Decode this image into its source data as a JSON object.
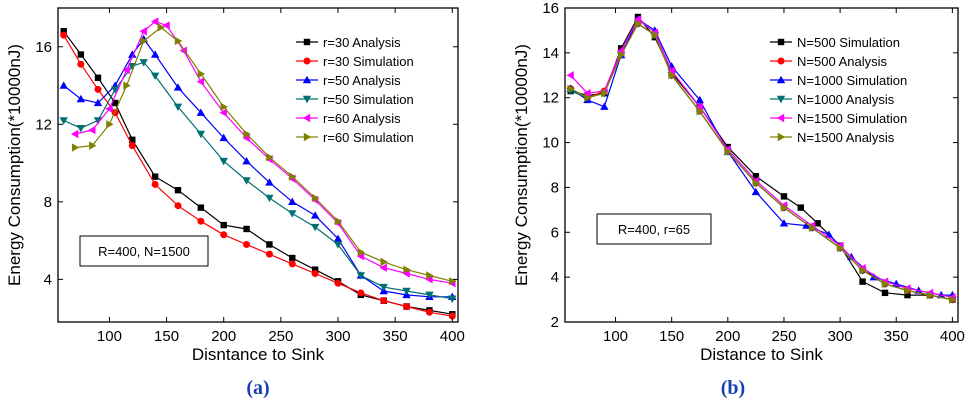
{
  "chart_data": [
    {
      "type": "line",
      "caption": "(a)",
      "xlabel": "Disntance to Sink",
      "ylabel": "Energy Consumption(*10000nJ)",
      "xlim": [
        55,
        405
      ],
      "ylim": [
        1.8,
        18
      ],
      "xticks": [
        100,
        150,
        200,
        250,
        300,
        350,
        400
      ],
      "yticks": [
        4,
        8,
        12,
        16
      ],
      "annotation": "R=400, N=1500",
      "legend_position": "top-right",
      "series": [
        {
          "name": "r=30 Analysis",
          "color": "#000000",
          "marker": "square",
          "x": [
            60,
            75,
            90,
            105,
            120,
            140,
            160,
            180,
            200,
            220,
            240,
            260,
            280,
            300,
            320,
            340,
            360,
            380,
            400
          ],
          "y": [
            16.8,
            15.6,
            14.4,
            13.1,
            11.2,
            9.3,
            8.6,
            7.7,
            6.8,
            6.6,
            5.8,
            5.1,
            4.5,
            3.9,
            3.2,
            2.9,
            2.6,
            2.4,
            2.2
          ]
        },
        {
          "name": "r=30 Simulation",
          "color": "#ff0000",
          "marker": "circle",
          "x": [
            60,
            75,
            90,
            105,
            120,
            140,
            160,
            180,
            200,
            220,
            240,
            260,
            280,
            300,
            320,
            340,
            360,
            380,
            400
          ],
          "y": [
            16.6,
            15.1,
            13.8,
            12.6,
            10.9,
            8.9,
            7.8,
            7.0,
            6.3,
            5.8,
            5.3,
            4.8,
            4.3,
            3.8,
            3.3,
            2.9,
            2.6,
            2.3,
            2.1
          ]
        },
        {
          "name": "r=50 Analysis",
          "color": "#0000ff",
          "marker": "triangle-up",
          "x": [
            60,
            75,
            90,
            105,
            120,
            130,
            140,
            160,
            180,
            200,
            220,
            240,
            260,
            280,
            300,
            320,
            340,
            360,
            380,
            400
          ],
          "y": [
            14.0,
            13.3,
            13.1,
            14.0,
            15.6,
            16.4,
            15.6,
            13.9,
            12.6,
            11.3,
            10.1,
            9.0,
            8.0,
            7.3,
            6.1,
            4.2,
            3.4,
            3.2,
            3.1,
            3.1
          ]
        },
        {
          "name": "r=50 Simulation",
          "color": "#007070",
          "marker": "triangle-down",
          "x": [
            60,
            75,
            90,
            105,
            120,
            130,
            140,
            160,
            180,
            200,
            220,
            240,
            260,
            280,
            300,
            320,
            340,
            360,
            380,
            400
          ],
          "y": [
            12.2,
            11.8,
            12.2,
            13.8,
            15.0,
            15.2,
            14.5,
            12.9,
            11.5,
            10.1,
            9.1,
            8.2,
            7.4,
            6.7,
            5.8,
            4.2,
            3.6,
            3.4,
            3.2,
            3.0
          ]
        },
        {
          "name": "r=60 Analysis",
          "color": "#ff00ff",
          "marker": "triangle-left",
          "x": [
            70,
            85,
            100,
            115,
            130,
            140,
            150,
            165,
            180,
            200,
            220,
            240,
            260,
            280,
            300,
            320,
            340,
            360,
            380,
            400
          ],
          "y": [
            11.5,
            11.7,
            12.8,
            14.8,
            16.8,
            17.3,
            17.1,
            15.8,
            14.2,
            12.6,
            11.3,
            10.2,
            9.2,
            8.1,
            6.9,
            5.2,
            4.6,
            4.3,
            4.0,
            3.8
          ]
        },
        {
          "name": "r=60 Simulation",
          "color": "#808000",
          "marker": "triangle-right",
          "x": [
            70,
            85,
            100,
            115,
            130,
            145,
            160,
            180,
            200,
            220,
            240,
            260,
            280,
            300,
            320,
            340,
            360,
            380,
            400
          ],
          "y": [
            10.8,
            10.9,
            12.0,
            14.0,
            16.3,
            17.0,
            16.3,
            14.6,
            12.9,
            11.5,
            10.3,
            9.3,
            8.2,
            7.0,
            5.4,
            4.9,
            4.5,
            4.2,
            3.9
          ]
        }
      ]
    },
    {
      "type": "line",
      "caption": "(b)",
      "xlabel": "Distance to Sink",
      "ylabel": "Energy Consumption(*10000nJ)",
      "xlim": [
        55,
        405
      ],
      "ylim": [
        2,
        16
      ],
      "xticks": [
        100,
        150,
        200,
        250,
        300,
        350,
        400
      ],
      "yticks": [
        2,
        4,
        6,
        8,
        10,
        12,
        14,
        16
      ],
      "annotation": "R=400, r=65",
      "legend_position": "top-right",
      "series": [
        {
          "name": "N=500 Simulation",
          "color": "#000000",
          "marker": "square",
          "x": [
            60,
            75,
            90,
            105,
            120,
            135,
            150,
            175,
            200,
            225,
            250,
            265,
            280,
            300,
            320,
            340,
            360,
            380,
            400
          ],
          "y": [
            12.3,
            12.1,
            12.2,
            14.2,
            15.6,
            14.7,
            13.1,
            11.6,
            9.8,
            8.5,
            7.6,
            7.1,
            6.4,
            5.4,
            3.8,
            3.3,
            3.2,
            3.2,
            3.0
          ]
        },
        {
          "name": "N=500 Analysis",
          "color": "#ff0000",
          "marker": "circle",
          "x": [
            60,
            75,
            90,
            105,
            120,
            135,
            150,
            175,
            200,
            225,
            250,
            275,
            300,
            320,
            340,
            360,
            380,
            400
          ],
          "y": [
            12.4,
            12.0,
            12.3,
            14.0,
            15.3,
            14.8,
            13.0,
            11.4,
            9.6,
            8.2,
            7.1,
            6.2,
            5.3,
            4.3,
            3.7,
            3.4,
            3.2,
            3.0
          ]
        },
        {
          "name": "N=1000 Simulation",
          "color": "#0000ff",
          "marker": "triangle-up",
          "x": [
            60,
            75,
            90,
            105,
            120,
            135,
            150,
            175,
            200,
            225,
            250,
            270,
            290,
            310,
            330,
            350,
            370,
            390,
            400
          ],
          "y": [
            12.4,
            11.9,
            11.6,
            13.9,
            15.5,
            15.0,
            13.4,
            11.9,
            9.6,
            7.8,
            6.4,
            6.3,
            5.9,
            4.9,
            4.0,
            3.7,
            3.4,
            3.2,
            3.2
          ]
        },
        {
          "name": "N=1000 Analysis",
          "color": "#007070",
          "marker": "triangle-down",
          "x": [
            60,
            75,
            90,
            105,
            120,
            135,
            150,
            175,
            200,
            225,
            250,
            275,
            300,
            320,
            340,
            360,
            380,
            400
          ],
          "y": [
            12.3,
            12.0,
            12.2,
            13.9,
            15.3,
            14.8,
            13.0,
            11.4,
            9.6,
            8.2,
            7.1,
            6.2,
            5.3,
            4.3,
            3.7,
            3.4,
            3.2,
            3.0
          ]
        },
        {
          "name": "N=1500 Simulation",
          "color": "#ff00ff",
          "marker": "triangle-left",
          "x": [
            60,
            75,
            90,
            105,
            120,
            135,
            150,
            175,
            200,
            225,
            250,
            275,
            300,
            320,
            340,
            360,
            380,
            400
          ],
          "y": [
            13.0,
            12.2,
            12.3,
            14.1,
            15.5,
            14.9,
            13.2,
            11.6,
            9.7,
            8.3,
            7.2,
            6.3,
            5.4,
            4.4,
            3.8,
            3.5,
            3.3,
            3.1
          ]
        },
        {
          "name": "N=1500 Analysis",
          "color": "#808000",
          "marker": "triangle-right",
          "x": [
            60,
            75,
            90,
            105,
            120,
            135,
            150,
            175,
            200,
            225,
            250,
            275,
            300,
            320,
            340,
            360,
            380,
            400
          ],
          "y": [
            12.4,
            12.0,
            12.2,
            13.9,
            15.3,
            14.8,
            13.0,
            11.4,
            9.6,
            8.2,
            7.1,
            6.2,
            5.3,
            4.3,
            3.7,
            3.4,
            3.2,
            3.0
          ]
        }
      ]
    }
  ]
}
